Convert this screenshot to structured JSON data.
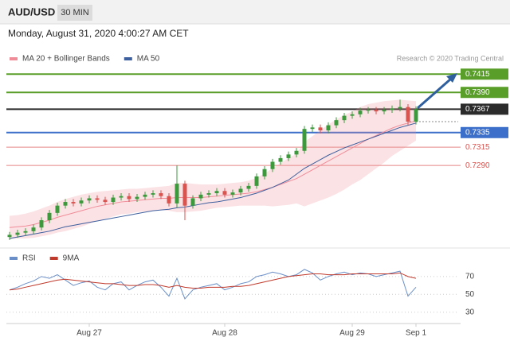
{
  "header": {
    "symbol": "AUD/USD",
    "interval": "30 MIN",
    "timestamp": "Monday, August 31, 2020 4:00:27 AM CET",
    "credit": "Research © 2020 Trading Central"
  },
  "chart_data": [
    {
      "type": "candlestick",
      "ylim": [
        0.719,
        0.7424
      ],
      "up_color": "#3c9a3c",
      "down_color": "#d9534f",
      "open": [
        0.7192,
        0.7195,
        0.7198,
        0.72,
        0.7205,
        0.7215,
        0.7225,
        0.7235,
        0.724,
        0.7238,
        0.7242,
        0.7245,
        0.7243,
        0.724,
        0.7246,
        0.7248,
        0.7244,
        0.7247,
        0.725,
        0.7252,
        0.7248,
        0.7238,
        0.7265,
        0.7235,
        0.7245,
        0.725,
        0.7252,
        0.7255,
        0.725,
        0.7253,
        0.7258,
        0.7262,
        0.7275,
        0.7285,
        0.7295,
        0.73,
        0.7305,
        0.731,
        0.734,
        0.7342,
        0.7338,
        0.7345,
        0.7352,
        0.7358,
        0.736,
        0.7365,
        0.7366,
        0.7364,
        0.7366,
        0.7368,
        0.737,
        0.735
      ],
      "high": [
        0.7199,
        0.7202,
        0.7204,
        0.7209,
        0.7219,
        0.7229,
        0.7239,
        0.7244,
        0.7244,
        0.7246,
        0.7249,
        0.7249,
        0.7247,
        0.725,
        0.7252,
        0.7252,
        0.7251,
        0.7254,
        0.7256,
        0.7256,
        0.7252,
        0.729,
        0.7269,
        0.7249,
        0.7254,
        0.7256,
        0.7259,
        0.7259,
        0.7257,
        0.7262,
        0.7266,
        0.7279,
        0.7289,
        0.7299,
        0.7304,
        0.7309,
        0.7314,
        0.7344,
        0.7346,
        0.7346,
        0.7349,
        0.7356,
        0.7362,
        0.7364,
        0.7369,
        0.737,
        0.737,
        0.737,
        0.7372,
        0.738,
        0.7374,
        0.7371
      ],
      "low": [
        0.7188,
        0.7191,
        0.7194,
        0.7196,
        0.7201,
        0.7211,
        0.7221,
        0.7231,
        0.7234,
        0.7234,
        0.7238,
        0.7239,
        0.7236,
        0.7236,
        0.7242,
        0.724,
        0.724,
        0.7243,
        0.7246,
        0.7244,
        0.7234,
        0.7232,
        0.7215,
        0.7231,
        0.7241,
        0.7246,
        0.7248,
        0.7246,
        0.7246,
        0.7249,
        0.7254,
        0.7258,
        0.7271,
        0.7281,
        0.7291,
        0.7296,
        0.7301,
        0.7306,
        0.7336,
        0.7334,
        0.7334,
        0.7341,
        0.7348,
        0.7354,
        0.7356,
        0.7361,
        0.736,
        0.736,
        0.7362,
        0.7364,
        0.7345,
        0.7346
      ],
      "close": [
        0.7195,
        0.7198,
        0.72,
        0.7205,
        0.7215,
        0.7225,
        0.7235,
        0.724,
        0.7238,
        0.7242,
        0.7245,
        0.7243,
        0.724,
        0.7246,
        0.7248,
        0.7244,
        0.7247,
        0.725,
        0.7252,
        0.7248,
        0.7238,
        0.7265,
        0.7235,
        0.7245,
        0.725,
        0.7252,
        0.7255,
        0.725,
        0.7253,
        0.7258,
        0.7262,
        0.7275,
        0.7285,
        0.7295,
        0.73,
        0.7305,
        0.731,
        0.734,
        0.7342,
        0.7338,
        0.7345,
        0.7352,
        0.7358,
        0.736,
        0.7365,
        0.7366,
        0.7364,
        0.7366,
        0.7368,
        0.737,
        0.735,
        0.7367
      ],
      "series": [
        {
          "name": "MA 20 + Bollinger Bands",
          "color": "#f08c98",
          "values": [
            0.7205,
            0.7206,
            0.7207,
            0.7209,
            0.7212,
            0.7215,
            0.7219,
            0.7222,
            0.7225,
            0.7228,
            0.7231,
            0.7234,
            0.7236,
            0.7238,
            0.724,
            0.7241,
            0.7242,
            0.7243,
            0.7244,
            0.7245,
            0.7245,
            0.7246,
            0.7246,
            0.7246,
            0.7246,
            0.7247,
            0.7248,
            0.7249,
            0.725,
            0.7251,
            0.7252,
            0.7254,
            0.7257,
            0.726,
            0.7264,
            0.7268,
            0.7272,
            0.7278,
            0.7284,
            0.729,
            0.7296,
            0.7302,
            0.7308,
            0.7314,
            0.732,
            0.7326,
            0.7331,
            0.7336,
            0.7341,
            0.7345,
            0.7348,
            0.7351
          ],
          "upper": [
            0.7221,
            0.7222,
            0.7224,
            0.7227,
            0.7231,
            0.7235,
            0.724,
            0.7244,
            0.7247,
            0.725,
            0.7252,
            0.7254,
            0.7255,
            0.7256,
            0.7257,
            0.7258,
            0.7258,
            0.7259,
            0.726,
            0.7261,
            0.7262,
            0.7266,
            0.7266,
            0.7265,
            0.7264,
            0.7264,
            0.7264,
            0.7265,
            0.7266,
            0.7267,
            0.7269,
            0.7273,
            0.7279,
            0.7286,
            0.7293,
            0.73,
            0.7306,
            0.7322,
            0.733,
            0.7338,
            0.7346,
            0.7353,
            0.7359,
            0.7364,
            0.737,
            0.7374,
            0.7376,
            0.7378,
            0.7379,
            0.738,
            0.7379,
            0.7378
          ],
          "lower": [
            0.7189,
            0.719,
            0.719,
            0.7191,
            0.7193,
            0.7195,
            0.7198,
            0.72,
            0.7203,
            0.7206,
            0.721,
            0.7214,
            0.7217,
            0.722,
            0.7223,
            0.7224,
            0.7226,
            0.7227,
            0.7228,
            0.7229,
            0.7228,
            0.7226,
            0.7226,
            0.7227,
            0.7228,
            0.723,
            0.7232,
            0.7233,
            0.7234,
            0.7235,
            0.7235,
            0.7235,
            0.7235,
            0.7234,
            0.7235,
            0.7236,
            0.7238,
            0.7234,
            0.7238,
            0.7242,
            0.7246,
            0.7251,
            0.7257,
            0.7264,
            0.727,
            0.7278,
            0.7286,
            0.7294,
            0.7303,
            0.731,
            0.7317,
            0.7324
          ]
        },
        {
          "name": "MA 50",
          "color": "#3d5f9e",
          "values": [
            0.719,
            0.7192,
            0.7194,
            0.7196,
            0.7198,
            0.72,
            0.7203,
            0.7206,
            0.7208,
            0.721,
            0.7212,
            0.7214,
            0.7216,
            0.7218,
            0.722,
            0.7222,
            0.7224,
            0.7226,
            0.7228,
            0.7229,
            0.723,
            0.7232,
            0.7233,
            0.7235,
            0.7237,
            0.7239,
            0.724,
            0.7242,
            0.7244,
            0.7246,
            0.7249,
            0.7252,
            0.7256,
            0.726,
            0.7265,
            0.727,
            0.7278,
            0.7286,
            0.7292,
            0.7298,
            0.7304,
            0.7309,
            0.7314,
            0.7318,
            0.7322,
            0.7326,
            0.733,
            0.7334,
            0.7338,
            0.7342,
            0.7345,
            0.7348
          ]
        }
      ],
      "levels": [
        {
          "value": 0.7415,
          "label": "0.7415",
          "color": "#5a9e2a",
          "boxed": true
        },
        {
          "value": 0.739,
          "label": "0.7390",
          "color": "#5a9e2a",
          "boxed": true
        },
        {
          "value": 0.7367,
          "label": "0.7367",
          "color": "#2b2b2b",
          "boxed": true
        },
        {
          "value": 0.7335,
          "label": "0.7335",
          "color": "#3c6fc9",
          "boxed": true
        },
        {
          "value": 0.7315,
          "label": "0.7315",
          "color": "#d9534f",
          "boxed": false
        },
        {
          "value": 0.729,
          "label": "0.7290",
          "color": "#d9534f",
          "boxed": false
        }
      ]
    },
    {
      "type": "line",
      "categories": [
        null,
        null,
        null,
        null,
        null,
        null,
        null,
        null,
        null,
        null,
        "Aug 27",
        null,
        null,
        null,
        null,
        null,
        null,
        null,
        null,
        null,
        null,
        null,
        null,
        null,
        null,
        null,
        null,
        "Aug 28",
        null,
        null,
        null,
        null,
        null,
        null,
        null,
        null,
        null,
        null,
        null,
        null,
        null,
        null,
        null,
        "Aug 29",
        null,
        null,
        null,
        null,
        null,
        null,
        null,
        "Sep 1"
      ],
      "ylim": [
        20,
        85
      ],
      "yticks": [
        70,
        50,
        30
      ],
      "grid": true,
      "series": [
        {
          "name": "RSI",
          "color": "#6a8fc8",
          "values": [
            55,
            58,
            62,
            65,
            70,
            68,
            72,
            66,
            60,
            63,
            65,
            58,
            55,
            62,
            64,
            55,
            60,
            64,
            66,
            58,
            48,
            68,
            45,
            55,
            58,
            60,
            62,
            55,
            58,
            62,
            64,
            70,
            72,
            75,
            73,
            70,
            72,
            78,
            74,
            66,
            70,
            73,
            75,
            72,
            74,
            73,
            70,
            72,
            74,
            76,
            48,
            58
          ]
        },
        {
          "name": "9MA",
          "color": "#c0392b",
          "values": [
            55,
            56,
            58,
            60,
            62,
            64,
            66,
            67,
            66,
            65,
            64,
            63,
            62,
            62,
            61,
            60,
            60,
            61,
            61,
            60,
            58,
            60,
            58,
            57,
            57,
            58,
            58,
            58,
            59,
            59,
            60,
            62,
            64,
            66,
            68,
            70,
            71,
            72,
            73,
            73,
            72,
            72,
            72,
            73,
            73,
            73,
            73,
            73,
            73,
            74,
            70,
            68
          ]
        }
      ]
    }
  ]
}
